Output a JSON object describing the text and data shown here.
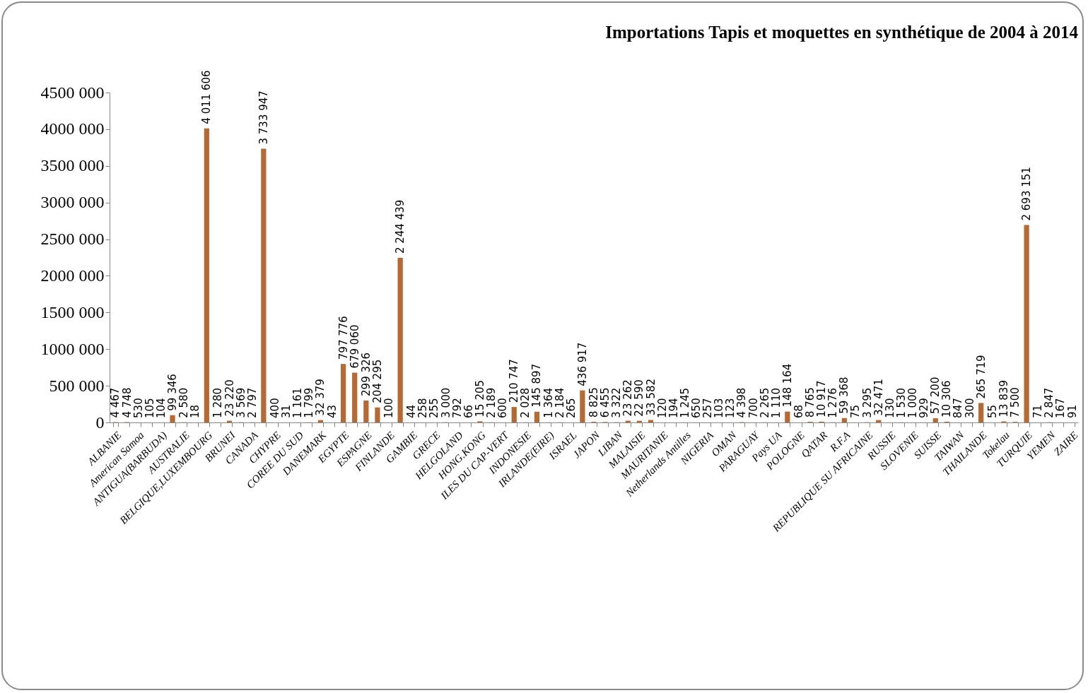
{
  "chart_data": {
    "type": "bar",
    "title": "Importations Tapis et moquettes en synthétique de 2004 à 2014",
    "categories": [
      "ALBANIE",
      null,
      "American Samoa",
      null,
      "ANTIGUA(BARBUDA)",
      null,
      "AUSTRALIE",
      null,
      "BELGIQUE,LUXEMBOURG",
      null,
      "BRUNEI",
      null,
      "CANADA",
      null,
      "CHYPRE",
      null,
      "COREE DU SUD",
      null,
      "DANEMARK",
      null,
      "EGYPTE",
      null,
      "ESPAGNE",
      null,
      "FINLANDE",
      null,
      "GAMBIE",
      null,
      "GRECE",
      null,
      "HELGOLAND",
      null,
      "HONG.KONG",
      null,
      "ILES DU CAP-VERT",
      null,
      "INDONESIE",
      null,
      "IRLANDE(EIRE)",
      null,
      "ISRAEL",
      null,
      "JAPON",
      null,
      "LIBAN",
      null,
      "MALAISIE",
      null,
      "MAURITANIE",
      null,
      "Netherlands Antilles",
      null,
      "NIGERIA",
      null,
      "OMAN",
      null,
      "PARAGUAY",
      null,
      "Pays UA",
      null,
      "POLOGNE",
      null,
      "QATAR",
      null,
      "R.F.A",
      null,
      "REPUBLIQUE SU AFRICAINE",
      null,
      "RUSSIE",
      null,
      "SLOVENIE",
      null,
      "SUISSE",
      null,
      "TAIWAN",
      null,
      "THAILANDE",
      null,
      "Tokelau",
      null,
      "TURQUIE",
      null,
      "YEMEN",
      null,
      "ZAIRE"
    ],
    "values": [
      4467,
      4748,
      530,
      105,
      104,
      99346,
      2580,
      18,
      4011606,
      1280,
      23220,
      3569,
      2797,
      3733947,
      400,
      31,
      1161,
      1799,
      32379,
      43,
      797776,
      679060,
      299326,
      204295,
      100,
      2244439,
      44,
      258,
      255,
      3000,
      792,
      66,
      15205,
      2189,
      600,
      210747,
      2028,
      145897,
      1364,
      2184,
      265,
      436917,
      8825,
      6455,
      3322,
      23262,
      22590,
      33582,
      120,
      194,
      1245,
      650,
      257,
      103,
      123,
      4398,
      700,
      2265,
      1110,
      148164,
      68,
      8765,
      10917,
      1276,
      59368,
      75,
      3295,
      32471,
      130,
      1530,
      1000,
      929,
      57200,
      10306,
      847,
      300,
      265719,
      55,
      13839,
      7500,
      2693151,
      71,
      2847,
      167,
      91
    ],
    "value_labels": [
      "4 467",
      "4 748",
      "530",
      "105",
      "104",
      "99 346",
      "2 580",
      "18",
      "4 011 606",
      "1 280",
      "23 220",
      "3 569",
      "2 797",
      "3 733 947",
      "400",
      "31",
      "1 161",
      "1 799",
      "32 379",
      "43",
      "797 776",
      "679 060",
      "299 326",
      "204 295",
      "100",
      "2 244 439",
      "44",
      "258",
      "255",
      "3 000",
      "792",
      "66",
      "15 205",
      "2 189",
      "600",
      "210 747",
      "2 028",
      "145 897",
      "1 364",
      "2 184",
      "265",
      "436 917",
      "8 825",
      "6 455",
      "3 322",
      "23 262",
      "22 590",
      "33 582",
      "120",
      "194",
      "1 245",
      "650",
      "257",
      "103",
      "123",
      "4 398",
      "700",
      "2 265",
      "1 110",
      "148 164",
      "68",
      "8 765",
      "10 917",
      "1 276",
      "59 368",
      "75",
      "3 295",
      "32 471",
      "130",
      "1 530",
      "1 000",
      "929",
      "57 200",
      "10 306",
      "847",
      "300",
      "265 719",
      "55",
      "13 839",
      "7 500",
      "2 693 151",
      "71",
      "2 847",
      "167",
      "91"
    ],
    "color": "#b36a35",
    "ylim": [
      0,
      4500000
    ],
    "yticks": [
      0,
      {
        "value": 500000,
        "label": "500 000"
      },
      {
        "value": 1000000,
        "label": "1000 000"
      },
      {
        "value": 1500000,
        "label": "1500 000"
      },
      {
        "value": 2000000,
        "label": "2000 000"
      },
      {
        "value": 2500000,
        "label": "2500 000"
      },
      {
        "value": 3000000,
        "label": "3000 000"
      },
      {
        "value": 3500000,
        "label": "3500 000"
      },
      {
        "value": 4000000,
        "label": "4000 000"
      },
      {
        "value": 4500000,
        "label": "4500 000"
      }
    ],
    "grid": false
  }
}
